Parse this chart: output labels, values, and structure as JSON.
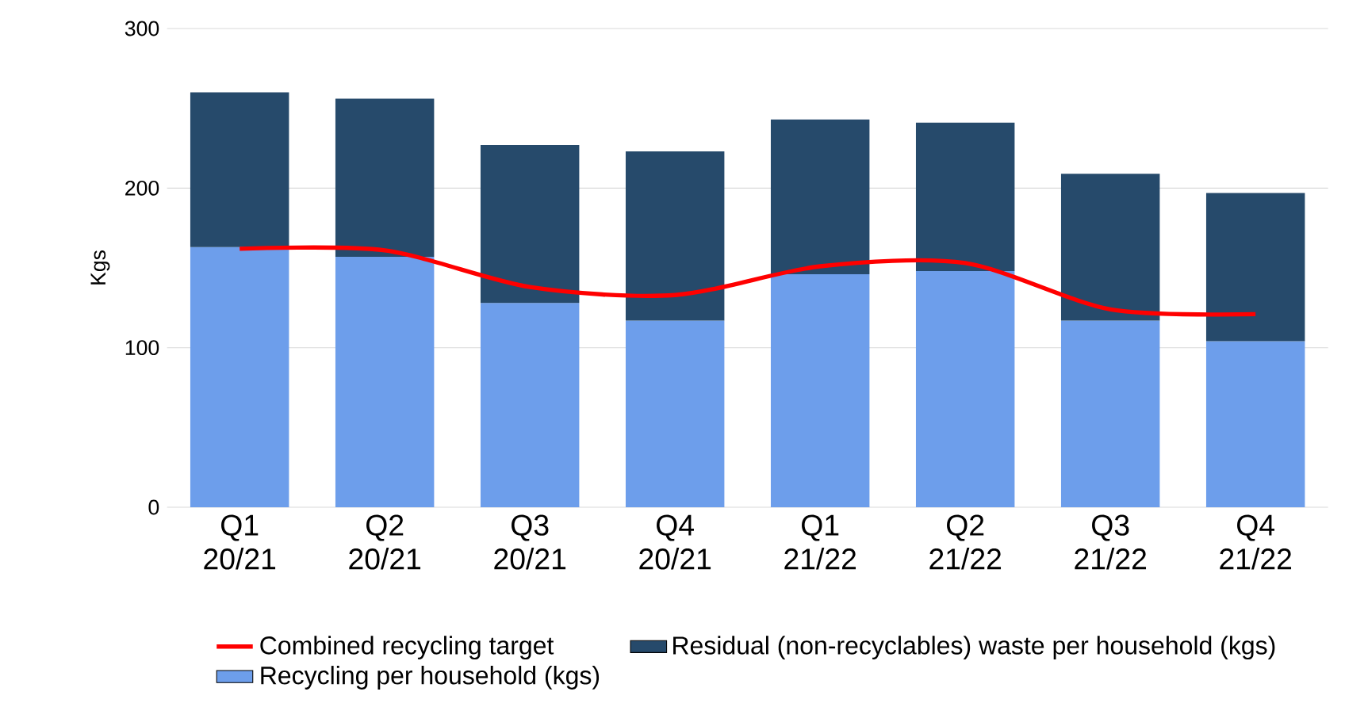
{
  "chart_data": {
    "type": "bar",
    "stacked": true,
    "ylabel": "Kgs",
    "categories": [
      "Q1 20/21",
      "Q2 20/21",
      "Q3 20/21",
      "Q4 20/21",
      "Q1 21/22",
      "Q2 21/22",
      "Q3 21/22",
      "Q4 21/22"
    ],
    "series": [
      {
        "name": "Recycling per household (kgs)",
        "color": "#6d9eeb",
        "values": [
          163,
          157,
          128,
          117,
          146,
          148,
          117,
          104
        ]
      },
      {
        "name": "Residual (non-recyclables) waste per household (kgs)",
        "color": "#264a6b",
        "values": [
          97,
          99,
          99,
          106,
          97,
          93,
          92,
          93
        ]
      },
      {
        "name": "Combined recycling target",
        "type": "line",
        "color": "#ff0000",
        "values": [
          162,
          161,
          138,
          133,
          151,
          153,
          124,
          121
        ]
      }
    ],
    "ylim": [
      0,
      300
    ],
    "yticks": [
      0,
      100,
      200,
      300
    ],
    "grid": "y",
    "legend": "bottom"
  }
}
